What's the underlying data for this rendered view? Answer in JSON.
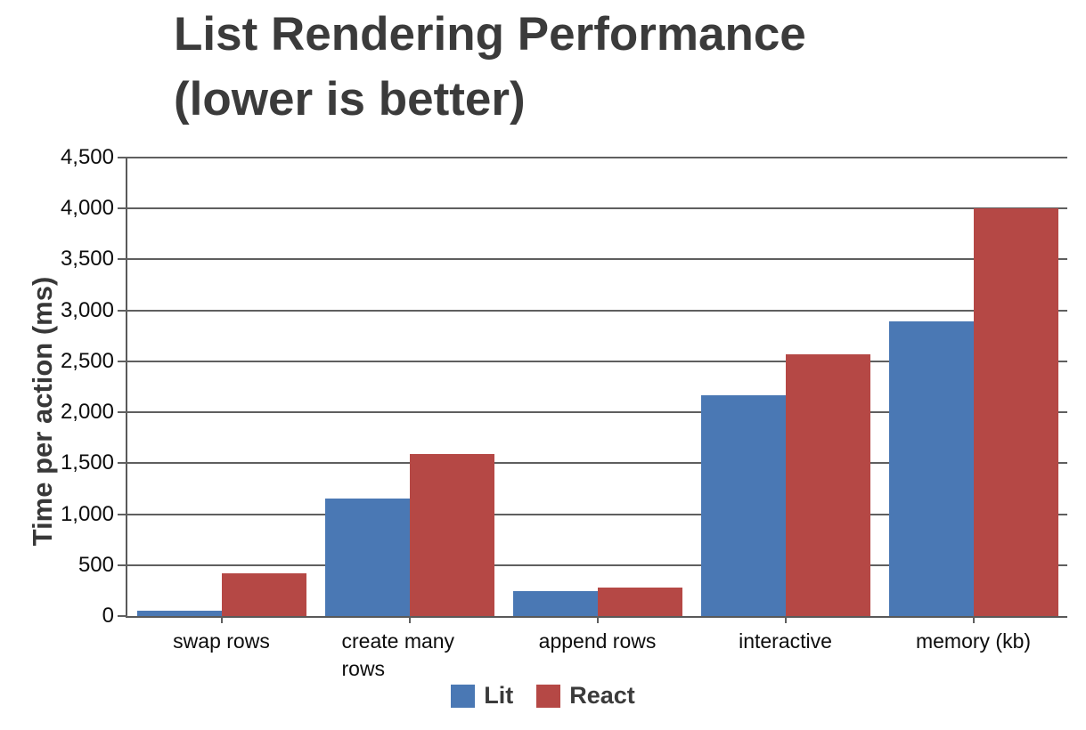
{
  "title": {
    "line1": "List Rendering Performance",
    "line2": "(lower is better)"
  },
  "chart_data": {
    "type": "bar",
    "title": "List Rendering Performance (lower is better)",
    "xlabel": "",
    "ylabel": "Time per action (ms)",
    "ylim": [
      0,
      4500
    ],
    "ytick_step": 500,
    "grid": true,
    "legend_position": "bottom",
    "categories": [
      "swap rows",
      "create many rows",
      "append rows",
      "interactive",
      "memory (kb)"
    ],
    "series": [
      {
        "name": "Lit",
        "color": "#4a78b4",
        "values": [
          50,
          1150,
          245,
          2170,
          2890
        ]
      },
      {
        "name": "React",
        "color": "#b54845",
        "values": [
          420,
          1590,
          280,
          2570,
          4000
        ]
      }
    ],
    "yticks": [
      {
        "value": 0,
        "label": "0"
      },
      {
        "value": 500,
        "label": "500"
      },
      {
        "value": 1000,
        "label": "1,000"
      },
      {
        "value": 1500,
        "label": "1,500"
      },
      {
        "value": 2000,
        "label": "2,000"
      },
      {
        "value": 2500,
        "label": "2,500"
      },
      {
        "value": 3000,
        "label": "3,000"
      },
      {
        "value": 3500,
        "label": "3,500"
      },
      {
        "value": 4000,
        "label": "4,000"
      },
      {
        "value": 4500,
        "label": "4,500"
      }
    ]
  },
  "colors": {
    "grid": "#5f5f5f",
    "axis": "#595959",
    "text": "#0d0d0d",
    "title": "#3b3b3b"
  }
}
